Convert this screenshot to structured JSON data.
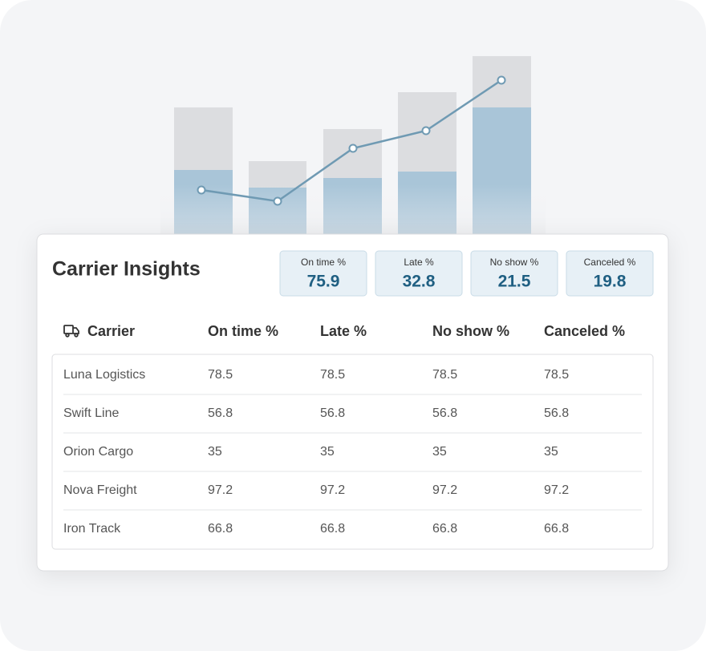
{
  "header": {
    "title": "Carrier Insights"
  },
  "kpis": [
    {
      "label": "On time %",
      "value": 75.9
    },
    {
      "label": "Late %",
      "value": 32.8
    },
    {
      "label": "No show %",
      "value": 21.5
    },
    {
      "label": "Canceled %",
      "value": 19.8
    }
  ],
  "table": {
    "columns": [
      "Carrier",
      "On time %",
      "Late %",
      "No show %",
      "Canceled %"
    ],
    "rows": [
      [
        "Luna Logistics",
        78.5,
        78.5,
        78.5,
        78.5
      ],
      [
        "Swift Line",
        56.8,
        56.8,
        56.8,
        56.8
      ],
      [
        "Orion Cargo",
        35,
        35,
        35,
        35
      ],
      [
        "Nova Freight",
        97.2,
        97.2,
        97.2,
        97.2
      ],
      [
        "Iron Track",
        66.8,
        66.8,
        66.8,
        66.8
      ]
    ]
  }
}
